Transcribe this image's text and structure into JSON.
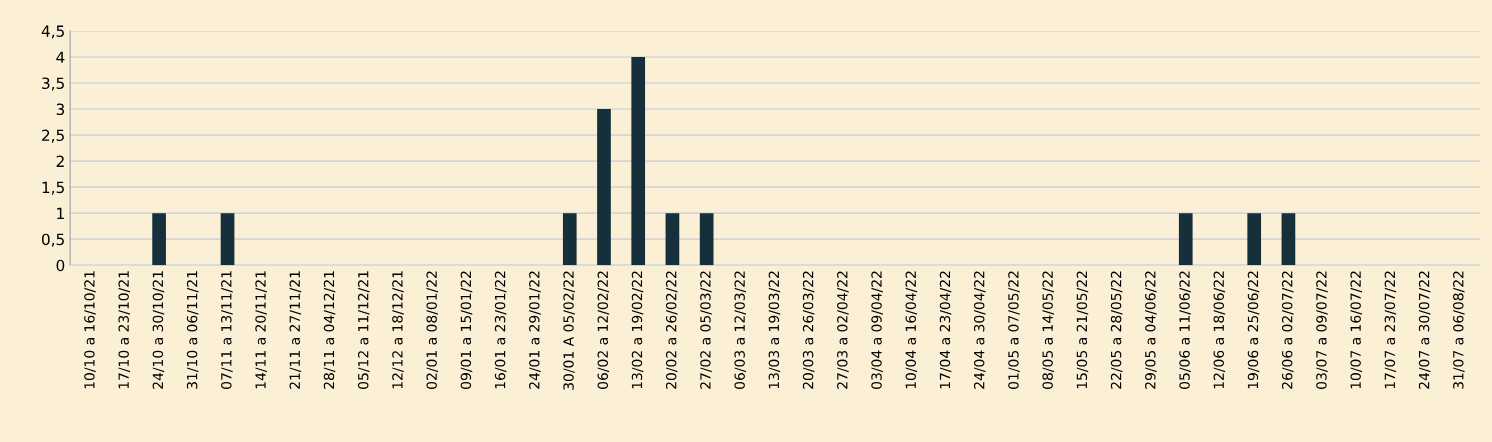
{
  "chart_data": {
    "type": "bar",
    "categories": [
      "10/10 a 16/10/21",
      "17/10 a 23/10/21",
      "24/10 a 30/10/21",
      "31/10 a 06/11/21",
      "07/11 a 13/11/21",
      "14/11 a 20/11/21",
      "21/11 a 27/11/21",
      "28/11 a 04/12/21",
      "05/12 a 11/12/21",
      "12/12 a 18/12/21",
      "02/01 a 08/01/22",
      "09/01 a 15/01/22",
      "16/01 a 23/01/22",
      "24/01 a 29/01/22",
      "30/01 A 05/02/22",
      "06/02 a 12/02/22",
      "13/02 a 19/02/22",
      "20/02 a 26/02/22",
      "27/02 a 05/03/22",
      "06/03 a 12/03/22",
      "13/03 a 19/03/22",
      "20/03 a 26/03/22",
      "27/03 a 02/04/22",
      "03/04 a 09/04/22",
      "10/04 a 16/04/22",
      "17/04 a 23/04/22",
      "24/04 a 30/04/22",
      "01/05 a 07/05/22",
      "08/05 a 14/05/22",
      "15/05 a 21/05/22",
      "22/05 a 28/05/22",
      "29/05 a 04/06/22",
      "05/06 a 11/06/22",
      "12/06 a 18/06/22",
      "19/06 a 25/06/22",
      "26/06 a 02/07/22",
      "03/07 a 09/07/22",
      "10/07 a 16/07/22",
      "17/07 a 23/07/22",
      "24/07 a 30/07/22",
      "31/07 a 06/08/22"
    ],
    "values": [
      0,
      0,
      1,
      0,
      1,
      0,
      0,
      0,
      0,
      0,
      0,
      0,
      0,
      0,
      1,
      3,
      4,
      1,
      1,
      0,
      0,
      0,
      0,
      0,
      0,
      0,
      0,
      0,
      0,
      0,
      0,
      0,
      1,
      0,
      1,
      1,
      0,
      0,
      0,
      0,
      0
    ],
    "color": "#15303a",
    "ylim": [
      0,
      4.5
    ],
    "yticks": [
      0,
      {
        "value": 0.5,
        "label": "0,5"
      },
      1,
      {
        "value": 1.5,
        "label": "1,5"
      },
      2,
      {
        "value": 2.5,
        "label": "2,5"
      },
      3,
      {
        "value": 3.5,
        "label": "3,5"
      },
      4,
      {
        "value": 4.5,
        "label": "4,5"
      }
    ],
    "grid": "y"
  }
}
